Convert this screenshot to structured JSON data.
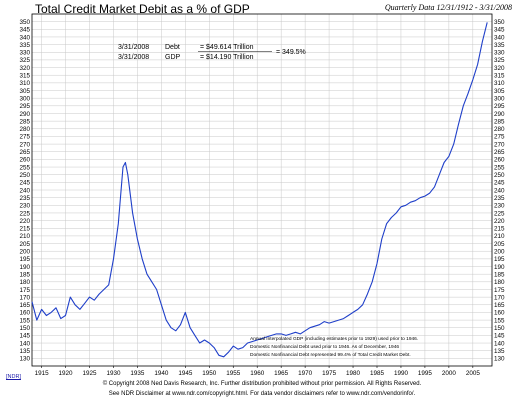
{
  "title": "Total Credit Market Debit as a % of GDP",
  "subtitle": "Quarterly Data 12/31/1912 - 3/31/2008",
  "annotation": {
    "debt_line": {
      "date": "3/31/2008",
      "label": "Debt",
      "value": "= $49.614 Trillion"
    },
    "gdp_line": {
      "date": "3/31/2008",
      "label": "GDP",
      "value": "= $14.190 Trillion"
    },
    "ratio": "= 349.5%"
  },
  "notes": [
    "Annual Interpolated GDP (including estimates prior to 1929) used prior to 1946.",
    "Domestic Nonfinancial Debt used prior to 1946. As of December, 1946",
    "Domestic Nonfinancial Debt represented 99.4% of Total Credit Market Debt."
  ],
  "footer": {
    "copyright": "© Copyright 2008 Ned Davis Research, Inc. Further distribution prohibited without prior permission. All Rights Reserved.",
    "disclaimer": "See NDR Disclaimer at www.ndr.com/copyright.html. For data vendor disclaimers refer to www.ndr.com/vendorinfo/.",
    "logo": "[NDR]"
  },
  "colors": {
    "line": "#1f3fc9",
    "grid": "#c8c8c8"
  },
  "chart_data": {
    "type": "line",
    "title": "Total Credit Market Debit as a % of GDP",
    "xlim": [
      1913,
      2009
    ],
    "ylim": [
      125,
      355
    ],
    "y_ticks": [
      130,
      135,
      140,
      145,
      150,
      155,
      160,
      165,
      170,
      175,
      180,
      185,
      190,
      195,
      200,
      205,
      210,
      215,
      220,
      225,
      230,
      235,
      240,
      245,
      250,
      255,
      260,
      265,
      270,
      275,
      280,
      285,
      290,
      295,
      300,
      305,
      310,
      315,
      320,
      325,
      330,
      335,
      340,
      345,
      350
    ],
    "x_ticks": [
      1915,
      1920,
      1925,
      1930,
      1935,
      1940,
      1945,
      1950,
      1955,
      1960,
      1965,
      1970,
      1975,
      1980,
      1985,
      1990,
      1995,
      2000,
      2005
    ],
    "grid": true,
    "series": [
      {
        "points": [
          [
            1913,
            167
          ],
          [
            1914,
            155
          ],
          [
            1915,
            162
          ],
          [
            1916,
            158
          ],
          [
            1917,
            160
          ],
          [
            1918,
            163
          ],
          [
            1919,
            156
          ],
          [
            1920,
            158
          ],
          [
            1921,
            170
          ],
          [
            1922,
            165
          ],
          [
            1923,
            162
          ],
          [
            1924,
            166
          ],
          [
            1925,
            170
          ],
          [
            1926,
            168
          ],
          [
            1927,
            172
          ],
          [
            1928,
            175
          ],
          [
            1929,
            178
          ],
          [
            1930,
            195
          ],
          [
            1931,
            218
          ],
          [
            1932,
            255
          ],
          [
            1932.5,
            258
          ],
          [
            1933,
            250
          ],
          [
            1934,
            225
          ],
          [
            1935,
            208
          ],
          [
            1936,
            195
          ],
          [
            1937,
            185
          ],
          [
            1938,
            180
          ],
          [
            1939,
            175
          ],
          [
            1940,
            165
          ],
          [
            1941,
            155
          ],
          [
            1942,
            150
          ],
          [
            1943,
            148
          ],
          [
            1944,
            152
          ],
          [
            1945,
            160
          ],
          [
            1946,
            150
          ],
          [
            1947,
            145
          ],
          [
            1948,
            140
          ],
          [
            1949,
            142
          ],
          [
            1950,
            140
          ],
          [
            1951,
            137
          ],
          [
            1952,
            132
          ],
          [
            1953,
            131
          ],
          [
            1954,
            134
          ],
          [
            1955,
            138
          ],
          [
            1956,
            136
          ],
          [
            1957,
            137
          ],
          [
            1958,
            140
          ],
          [
            1959,
            141
          ],
          [
            1960,
            142
          ],
          [
            1961,
            143
          ],
          [
            1962,
            144
          ],
          [
            1963,
            145
          ],
          [
            1964,
            146
          ],
          [
            1965,
            146
          ],
          [
            1966,
            145
          ],
          [
            1967,
            146
          ],
          [
            1968,
            147
          ],
          [
            1969,
            146
          ],
          [
            1970,
            148
          ],
          [
            1971,
            150
          ],
          [
            1972,
            151
          ],
          [
            1973,
            152
          ],
          [
            1974,
            154
          ],
          [
            1975,
            153
          ],
          [
            1976,
            154
          ],
          [
            1977,
            155
          ],
          [
            1978,
            156
          ],
          [
            1979,
            158
          ],
          [
            1980,
            160
          ],
          [
            1981,
            162
          ],
          [
            1982,
            165
          ],
          [
            1983,
            172
          ],
          [
            1984,
            180
          ],
          [
            1985,
            192
          ],
          [
            1986,
            208
          ],
          [
            1987,
            218
          ],
          [
            1988,
            222
          ],
          [
            1989,
            225
          ],
          [
            1990,
            229
          ],
          [
            1991,
            230
          ],
          [
            1992,
            232
          ],
          [
            1993,
            233
          ],
          [
            1994,
            235
          ],
          [
            1995,
            236
          ],
          [
            1996,
            238
          ],
          [
            1997,
            242
          ],
          [
            1998,
            250
          ],
          [
            1999,
            258
          ],
          [
            2000,
            262
          ],
          [
            2001,
            270
          ],
          [
            2002,
            283
          ],
          [
            2003,
            295
          ],
          [
            2004,
            303
          ],
          [
            2005,
            312
          ],
          [
            2006,
            322
          ],
          [
            2007,
            337
          ],
          [
            2008,
            349.5
          ]
        ]
      }
    ]
  }
}
